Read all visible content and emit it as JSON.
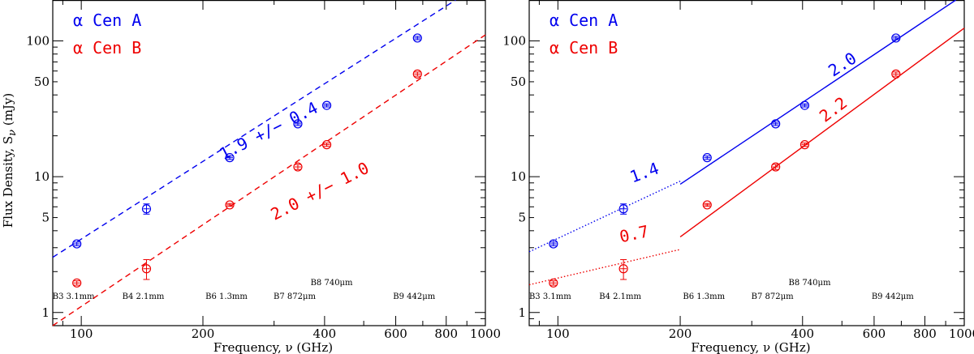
{
  "chart_data": [
    {
      "type": "scatter",
      "panel": "left",
      "xscale": "log",
      "yscale": "log",
      "xlim": [
        85,
        1000
      ],
      "ylim": [
        0.8,
        200
      ],
      "xlabel": "Frequency, ν (GHz)",
      "ylabel": "Flux Density, S_ν (mJy)",
      "xticklabels": [
        "100",
        "200",
        "400",
        "600",
        "800",
        "1000"
      ],
      "yticklabels": [
        "1",
        "5",
        "10",
        "50",
        "100"
      ],
      "legend": [
        {
          "label": "α  Cen A",
          "color": "#0000ee"
        },
        {
          "label": "α  Cen B",
          "color": "#ee0000"
        }
      ],
      "bands": [
        {
          "label": "B3 3.1mm",
          "freq": 97.5
        },
        {
          "label": "B4 2.1mm",
          "freq": 145
        },
        {
          "label": "B6 1.3mm",
          "freq": 233
        },
        {
          "label": "B7 872μm",
          "freq": 343.5
        },
        {
          "label": "B8 740μm",
          "freq": 405
        },
        {
          "label": "B9 442μm",
          "freq": 679
        }
      ],
      "series": [
        {
          "name": "α Cen A",
          "color": "#0000ee",
          "points": [
            {
              "x": 97.5,
              "y": 3.2,
              "err": 0.1
            },
            {
              "x": 145,
              "y": 5.8,
              "err": 0.5
            },
            {
              "x": 233,
              "y": 13.8,
              "err": 0.4
            },
            {
              "x": 343.5,
              "y": 24.5,
              "err": 0.7
            },
            {
              "x": 405,
              "y": 33.5,
              "err": 0.9
            },
            {
              "x": 679,
              "y": 105,
              "err": 3
            }
          ],
          "fits": [
            {
              "x0": 85,
              "x1": 1000,
              "y0": 2.55,
              "slope": 1.9,
              "style": "dashed"
            }
          ],
          "annotations": [
            {
              "text": "1.9 +/− 0.4",
              "x": 295,
              "y": 20,
              "angle": -27
            }
          ]
        },
        {
          "name": "α Cen B",
          "color": "#ee0000",
          "points": [
            {
              "x": 97.5,
              "y": 1.65,
              "err": 0.06
            },
            {
              "x": 145,
              "y": 2.1,
              "err": 0.35
            },
            {
              "x": 233,
              "y": 6.2,
              "err": 0.15
            },
            {
              "x": 343.5,
              "y": 11.8,
              "err": 0.5
            },
            {
              "x": 405,
              "y": 17.2,
              "err": 0.5
            },
            {
              "x": 679,
              "y": 57,
              "err": 2
            }
          ],
          "fits": [
            {
              "x0": 85,
              "x1": 1000,
              "y0": 0.8,
              "slope": 2.0,
              "style": "dashed"
            }
          ],
          "annotations": [
            {
              "text": "2.0 +/− 1.0",
              "x": 395,
              "y": 7.2,
              "angle": -27
            }
          ]
        }
      ]
    },
    {
      "type": "scatter",
      "panel": "right",
      "xscale": "log",
      "yscale": "log",
      "xlim": [
        85,
        1000
      ],
      "ylim": [
        0.8,
        200
      ],
      "xlabel": "Frequency, ν (GHz)",
      "ylabel": "",
      "xticklabels": [
        "100",
        "200",
        "400",
        "600",
        "800",
        "1000"
      ],
      "yticklabels": [
        "1",
        "5",
        "10",
        "50",
        "100"
      ],
      "legend": [
        {
          "label": "α  Cen A",
          "color": "#0000ee"
        },
        {
          "label": "α  Cen B",
          "color": "#ee0000"
        }
      ],
      "bands": [
        {
          "label": "B3 3.1mm",
          "freq": 97.5
        },
        {
          "label": "B4 2.1mm",
          "freq": 145
        },
        {
          "label": "B6 1.3mm",
          "freq": 233
        },
        {
          "label": "B7 872μm",
          "freq": 343.5
        },
        {
          "label": "B8 740μm",
          "freq": 405
        },
        {
          "label": "B9 442μm",
          "freq": 679
        }
      ],
      "series": [
        {
          "name": "α Cen A",
          "color": "#0000ee",
          "points": [
            {
              "x": 97.5,
              "y": 3.2,
              "err": 0.1
            },
            {
              "x": 145,
              "y": 5.8,
              "err": 0.5
            },
            {
              "x": 233,
              "y": 13.8,
              "err": 0.4
            },
            {
              "x": 343.5,
              "y": 24.5,
              "err": 0.7
            },
            {
              "x": 405,
              "y": 33.5,
              "err": 0.9
            },
            {
              "x": 679,
              "y": 105,
              "err": 3
            }
          ],
          "fits": [
            {
              "x0": 85,
              "x1": 200,
              "y0": 2.8,
              "slope": 1.4,
              "style": "dotted"
            },
            {
              "x0": 200,
              "x1": 1000,
              "y0": 8.8,
              "slope": 2.0,
              "style": "solid"
            }
          ],
          "annotations": [
            {
              "text": "1.4",
              "x": 165,
              "y": 9.8,
              "angle": -20
            },
            {
              "text": "2.0",
              "x": 510,
              "y": 62,
              "angle": -33
            }
          ]
        },
        {
          "name": "α Cen B",
          "color": "#ee0000",
          "points": [
            {
              "x": 97.5,
              "y": 1.65,
              "err": 0.06
            },
            {
              "x": 145,
              "y": 2.1,
              "err": 0.35
            },
            {
              "x": 233,
              "y": 6.2,
              "err": 0.15
            },
            {
              "x": 343.5,
              "y": 11.8,
              "err": 0.5
            },
            {
              "x": 405,
              "y": 17.2,
              "err": 0.5
            },
            {
              "x": 679,
              "y": 57,
              "err": 2
            }
          ],
          "fits": [
            {
              "x0": 85,
              "x1": 200,
              "y0": 1.6,
              "slope": 0.7,
              "style": "dotted"
            },
            {
              "x0": 200,
              "x1": 1000,
              "y0": 3.6,
              "slope": 2.2,
              "style": "solid"
            }
          ],
          "annotations": [
            {
              "text": "0.7",
              "x": 155,
              "y": 3.45,
              "angle": -12
            },
            {
              "text": "2.2",
              "x": 485,
              "y": 29,
              "angle": -37
            }
          ]
        }
      ]
    }
  ]
}
